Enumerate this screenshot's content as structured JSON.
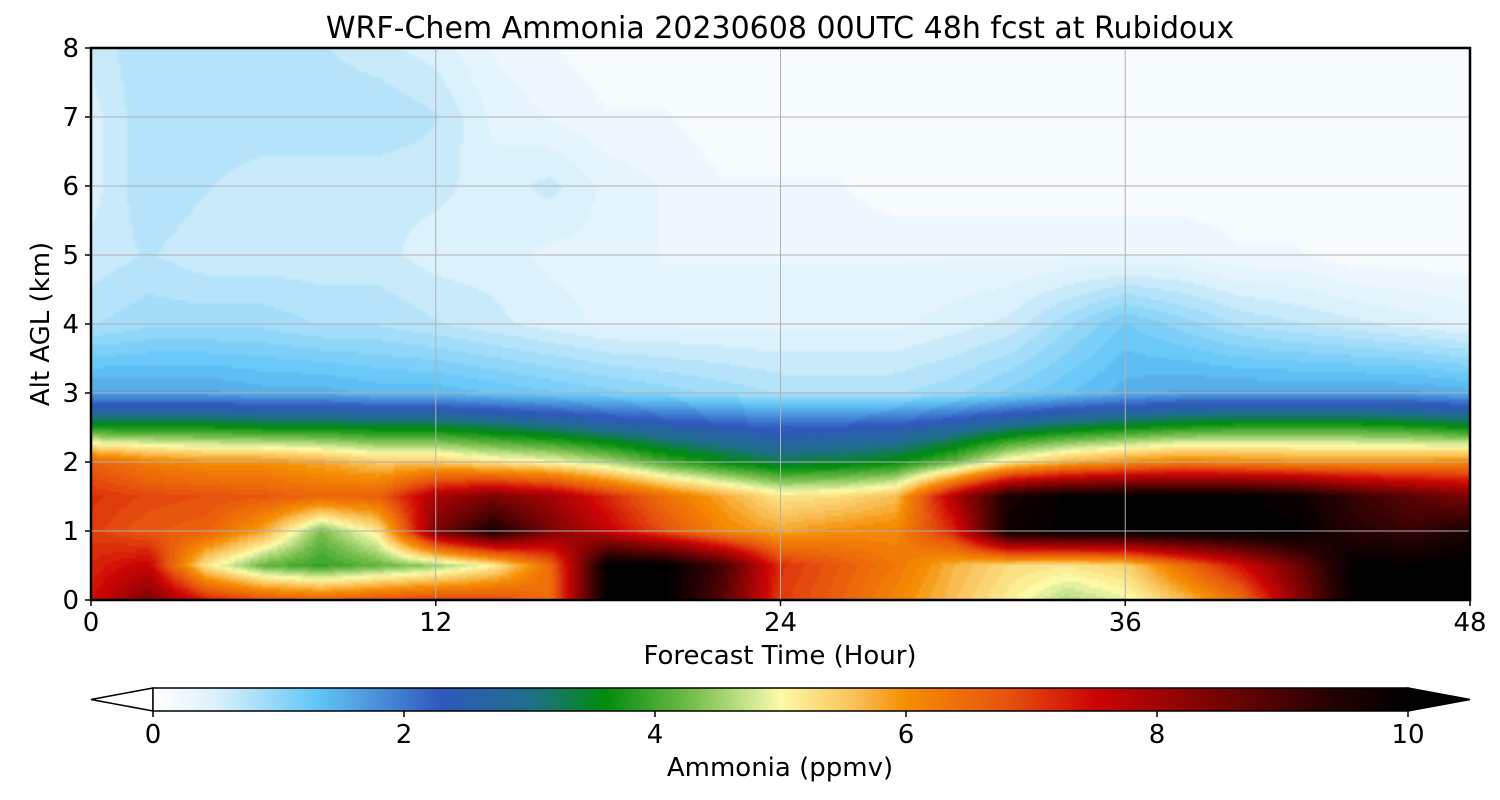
{
  "chart_data": {
    "type": "heatmap",
    "subtype": "filled-contour",
    "title": "WRF-Chem Ammonia  20230608 00UTC 48h fcst at Rubidoux",
    "xlabel": "Forecast Time (Hour)",
    "ylabel": "Alt AGL (km)",
    "xlim": [
      0,
      48
    ],
    "ylim": [
      0,
      8
    ],
    "xticks": [
      0,
      12,
      24,
      36,
      48
    ],
    "yticks": [
      0,
      1,
      2,
      3,
      4,
      5,
      6,
      7,
      8
    ],
    "grid": true,
    "field": {
      "x": [
        0,
        2,
        4,
        6,
        8,
        10,
        12,
        14,
        16,
        18,
        20,
        22,
        24,
        26,
        28,
        30,
        32,
        34,
        36,
        38,
        40,
        42,
        44,
        46,
        48
      ],
      "y": [
        0,
        0.5,
        1,
        1.5,
        2,
        2.5,
        3,
        4,
        5,
        6,
        7,
        8
      ],
      "values": [
        [
          7.4,
          8.4,
          7.3,
          6.8,
          6.6,
          6.8,
          7.0,
          6.9,
          6.4,
          10.0,
          10.0,
          8.8,
          7.0,
          6.6,
          6.1,
          5.6,
          5.1,
          4.6,
          4.9,
          5.6,
          6.4,
          8.2,
          10.0,
          10.0,
          10.0
        ],
        [
          7.2,
          7.6,
          5.2,
          4.2,
          3.9,
          4.2,
          4.5,
          5.1,
          6.5,
          10.0,
          10.0,
          9.0,
          7.1,
          6.7,
          6.3,
          5.7,
          5.3,
          5.2,
          5.4,
          6.4,
          7.4,
          8.6,
          10.0,
          10.0,
          10.0
        ],
        [
          7.0,
          6.7,
          6.6,
          5.8,
          4.3,
          5.2,
          8.4,
          9.6,
          8.4,
          7.6,
          6.8,
          6.1,
          5.8,
          6.0,
          6.1,
          7.2,
          9.8,
          10.0,
          10.0,
          10.0,
          10.0,
          10.0,
          9.4,
          9.2,
          9.6
        ],
        [
          7.1,
          6.9,
          6.8,
          6.7,
          6.5,
          6.6,
          7.9,
          8.4,
          8.0,
          7.2,
          6.4,
          5.8,
          5.2,
          5.3,
          5.6,
          7.8,
          9.6,
          10.0,
          10.0,
          10.0,
          10.0,
          9.8,
          9.2,
          8.8,
          8.4
        ],
        [
          6.6,
          6.2,
          6.0,
          6.0,
          5.8,
          5.5,
          5.5,
          5.2,
          5.0,
          4.6,
          4.0,
          3.6,
          3.3,
          3.4,
          3.6,
          4.2,
          5.2,
          5.7,
          6.0,
          6.2,
          6.1,
          6.0,
          6.0,
          6.0,
          6.1
        ],
        [
          3.7,
          3.7,
          3.7,
          3.6,
          3.6,
          3.5,
          3.5,
          3.3,
          3.1,
          2.8,
          2.6,
          2.4,
          2.2,
          2.3,
          2.4,
          2.7,
          3.1,
          3.4,
          3.6,
          3.8,
          3.9,
          3.9,
          3.9,
          3.8,
          3.6
        ],
        [
          1.6,
          1.6,
          1.6,
          1.5,
          1.5,
          1.4,
          1.4,
          1.3,
          1.2,
          1.1,
          1.0,
          0.9,
          0.8,
          0.8,
          0.8,
          0.9,
          1.1,
          1.3,
          1.5,
          1.6,
          1.6,
          1.6,
          1.6,
          1.6,
          1.5
        ],
        [
          0.8,
          0.9,
          0.9,
          0.9,
          0.8,
          0.8,
          0.7,
          0.6,
          0.5,
          0.4,
          0.4,
          0.4,
          0.4,
          0.4,
          0.4,
          0.5,
          0.6,
          0.9,
          1.2,
          1.0,
          0.8,
          0.7,
          0.6,
          0.5,
          0.4
        ],
        [
          0.6,
          0.7,
          0.6,
          0.6,
          0.6,
          0.6,
          0.5,
          0.5,
          0.4,
          0.4,
          0.3,
          0.3,
          0.3,
          0.3,
          0.3,
          0.3,
          0.3,
          0.3,
          0.3,
          0.3,
          0.2,
          0.2,
          0.1,
          0.1,
          0.1
        ],
        [
          0.5,
          0.8,
          0.7,
          0.6,
          0.6,
          0.6,
          0.6,
          0.5,
          0.6,
          0.4,
          0.3,
          0.2,
          0.2,
          0.2,
          0.1,
          0.1,
          0.1,
          0.1,
          0.1,
          0.1,
          0.1,
          0.1,
          0.1,
          0.1,
          0.1
        ],
        [
          0.5,
          0.8,
          0.8,
          0.8,
          0.8,
          0.8,
          0.7,
          0.4,
          0.3,
          0.2,
          0.2,
          0.1,
          0.1,
          0.1,
          0.1,
          0.1,
          0.1,
          0.1,
          0.1,
          0.1,
          0.1,
          0.1,
          0.1,
          0.1,
          0.1
        ],
        [
          0.6,
          0.8,
          0.8,
          0.7,
          0.7,
          0.6,
          0.5,
          0.3,
          0.2,
          0.1,
          0.1,
          0.1,
          0.1,
          0.1,
          0.1,
          0.1,
          0.1,
          0.1,
          0.1,
          0.1,
          0.1,
          0.1,
          0.1,
          0.1,
          0.1
        ]
      ]
    },
    "colorbar": {
      "label": "Ammonia  (ppmv)",
      "min": 0,
      "max": 10,
      "ticks": [
        0,
        2,
        4,
        6,
        8,
        10
      ],
      "extend": "both",
      "orientation": "horizontal",
      "colorscale": [
        [
          0.0,
          "#ffffff"
        ],
        [
          0.5,
          "#dbf1fc"
        ],
        [
          1.3,
          "#62c6f7"
        ],
        [
          2.3,
          "#2f57bc"
        ],
        [
          3.0,
          "#1f6f8c"
        ],
        [
          3.6,
          "#008c0c"
        ],
        [
          4.3,
          "#77be4a"
        ],
        [
          4.8,
          "#d3ea97"
        ],
        [
          5.0,
          "#fdfaa6"
        ],
        [
          5.6,
          "#f9bf56"
        ],
        [
          6.0,
          "#f68e03"
        ],
        [
          6.8,
          "#e7520e"
        ],
        [
          7.5,
          "#cd0404"
        ],
        [
          8.6,
          "#6b0303"
        ],
        [
          9.4,
          "#250101"
        ],
        [
          10.0,
          "#000000"
        ]
      ]
    }
  }
}
